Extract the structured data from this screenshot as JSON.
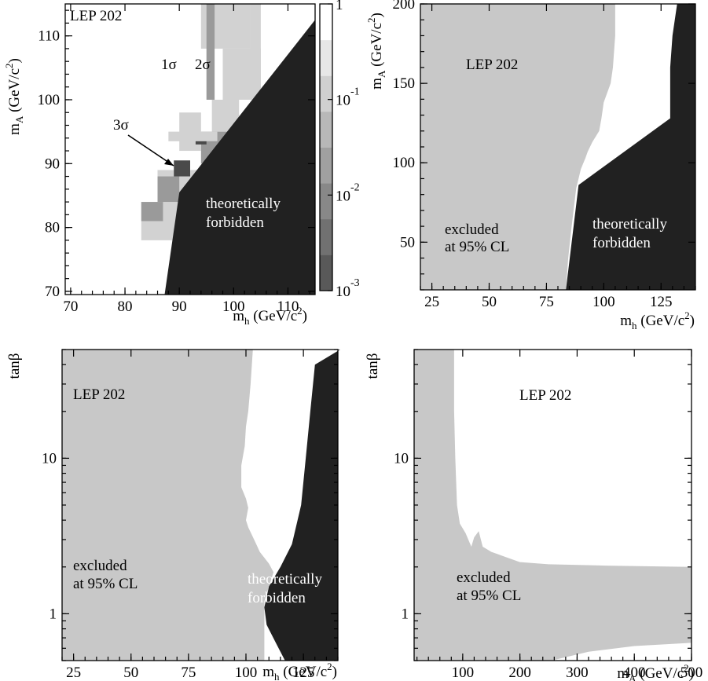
{
  "colors": {
    "excluded": "#c8c8c8",
    "forbidden": "#212121",
    "allowed": "#ffffff",
    "gray_1sigma": "#d2d2d2",
    "gray_2sigma": "#9a9a9a",
    "gray_3sigma": "#4a4a4a"
  },
  "chart_data": [
    {
      "panel": "top-left",
      "type": "heatmap",
      "label": "LEP 202",
      "x_axis": {
        "var": "m",
        "sub": "h",
        "unit": " (GeV/c",
        "sup": "2",
        "close": ")",
        "range": [
          69,
          115
        ],
        "ticks": [
          70,
          80,
          90,
          100,
          110
        ]
      },
      "y_axis": {
        "var": "m",
        "sub": "A",
        "unit": " (GeV/c",
        "sup": "2",
        "close": ")",
        "range": [
          69.5,
          115
        ],
        "ticks": [
          70,
          80,
          90,
          100,
          110
        ]
      },
      "colorbar": {
        "scale": "log",
        "range": [
          0.001,
          1
        ],
        "ticks": [
          {
            "base": "10",
            "exp": "-3",
            "value": 0.001
          },
          {
            "base": "10",
            "exp": "-2",
            "value": 0.01
          },
          {
            "base": "10",
            "exp": "-1",
            "value": 0.1
          },
          {
            "base": "1",
            "exp": "",
            "value": 1
          }
        ]
      },
      "contours": [
        "1σ",
        "2σ",
        "3σ"
      ],
      "forbidden_boundary": [
        [
          87.3,
          69.5
        ],
        [
          90,
          85.5
        ],
        [
          115,
          112.5
        ]
      ],
      "annotations": {
        "sigma1": "1σ",
        "sigma2": "2σ",
        "sigma3": "3σ",
        "forbidden_1": "theoretically",
        "forbidden_2": "forbidden"
      }
    },
    {
      "panel": "top-right",
      "type": "area",
      "label": "LEP 202",
      "x_axis": {
        "var": "m",
        "sub": "h",
        "unit": " (GeV/c",
        "sup": "2",
        "close": ")",
        "range": [
          20,
          140
        ],
        "ticks": [
          25,
          50,
          75,
          100,
          125
        ]
      },
      "y_axis": {
        "var": "m",
        "sub": "A",
        "unit": " (GeV/c",
        "sup": "2",
        "close": ")",
        "range": [
          20,
          200
        ],
        "ticks": [
          50,
          100,
          150,
          200
        ]
      },
      "excluded_boundary": [
        [
          105,
          200
        ],
        [
          105,
          180
        ],
        [
          104,
          160
        ],
        [
          103,
          150
        ],
        [
          100,
          138
        ],
        [
          99,
          128
        ],
        [
          98,
          120
        ],
        [
          95,
          113
        ],
        [
          93,
          107
        ],
        [
          92,
          103
        ],
        [
          90,
          96
        ],
        [
          89,
          90
        ],
        [
          88,
          84
        ],
        [
          86,
          60
        ],
        [
          84.5,
          40
        ],
        [
          83.5,
          20
        ]
      ],
      "forbidden_boundary": [
        [
          83.5,
          20
        ],
        [
          89,
          86
        ],
        [
          129,
          128
        ],
        [
          129,
          160
        ],
        [
          130,
          180
        ],
        [
          132,
          200
        ]
      ],
      "annotations": {
        "excluded_1": "excluded",
        "excluded_2": "at 95% CL",
        "forbidden_1": "theoretically",
        "forbidden_2": "forbidden"
      }
    },
    {
      "panel": "bottom-left",
      "type": "area",
      "label": "LEP 202",
      "x_axis": {
        "var": "m",
        "sub": "h",
        "unit": " (GeV/c",
        "sup": "2",
        "close": ")",
        "range": [
          20,
          140
        ],
        "ticks": [
          25,
          50,
          75,
          100,
          125
        ]
      },
      "y_axis": {
        "var": "tanβ",
        "sub": "",
        "unit": "",
        "sup": "",
        "close": "",
        "scale": "log",
        "range": [
          0.5,
          50
        ],
        "ticks": [
          1,
          10
        ]
      },
      "excluded_boundary": [
        [
          103,
          50
        ],
        [
          102,
          30
        ],
        [
          101,
          20
        ],
        [
          100,
          16
        ],
        [
          99.5,
          12
        ],
        [
          98,
          9
        ],
        [
          98,
          6.5
        ],
        [
          100,
          5.5
        ],
        [
          101,
          4.8
        ],
        [
          100,
          4
        ],
        [
          101,
          3.6
        ],
        [
          104,
          2.9
        ],
        [
          106,
          2.5
        ],
        [
          110,
          2.1
        ],
        [
          112,
          1.85
        ],
        [
          110,
          1.5
        ],
        [
          108,
          1.2
        ],
        [
          108,
          0.8
        ],
        [
          108,
          0.5
        ]
      ],
      "forbidden_boundary": [
        [
          141,
          50
        ],
        [
          130,
          40
        ],
        [
          128,
          20
        ],
        [
          126,
          10
        ],
        [
          124,
          5
        ],
        [
          120,
          2.8
        ],
        [
          115,
          2
        ],
        [
          110,
          1.5
        ],
        [
          108,
          1.1
        ],
        [
          109,
          0.85
        ],
        [
          113,
          0.65
        ],
        [
          117,
          0.5
        ]
      ],
      "annotations": {
        "excluded_1": "excluded",
        "excluded_2": "at 95% CL",
        "forbidden_1": "theoretically",
        "forbidden_2": "forbidden"
      }
    },
    {
      "panel": "bottom-right",
      "type": "area",
      "label": "LEP 202",
      "x_axis": {
        "var": "m",
        "sub": "A",
        "unit": " (GeV/c",
        "sup": "2",
        "close": ")",
        "range": [
          15,
          500
        ],
        "ticks": [
          100,
          200,
          300,
          400,
          500
        ]
      },
      "y_axis": {
        "var": "tanβ",
        "sub": "",
        "unit": "",
        "sup": "",
        "close": "",
        "scale": "log",
        "range": [
          0.5,
          50
        ],
        "ticks": [
          1,
          10
        ]
      },
      "excluded_upper_boundary": [
        [
          85,
          50
        ],
        [
          85,
          20
        ],
        [
          87,
          10
        ],
        [
          90,
          5
        ],
        [
          95,
          3.8
        ],
        [
          105,
          3.3
        ],
        [
          115,
          2.7
        ],
        [
          120,
          3.1
        ],
        [
          128,
          3.4
        ],
        [
          135,
          2.7
        ],
        [
          150,
          2.5
        ],
        [
          200,
          2.15
        ],
        [
          250,
          2.08
        ],
        [
          350,
          2.04
        ],
        [
          500,
          2.0
        ]
      ],
      "excluded_lower_boundary": [
        [
          255,
          0.5
        ],
        [
          320,
          0.57
        ],
        [
          400,
          0.62
        ],
        [
          500,
          0.65
        ]
      ],
      "annotations": {
        "excluded_1": "excluded",
        "excluded_2": "at 95% CL"
      }
    }
  ]
}
